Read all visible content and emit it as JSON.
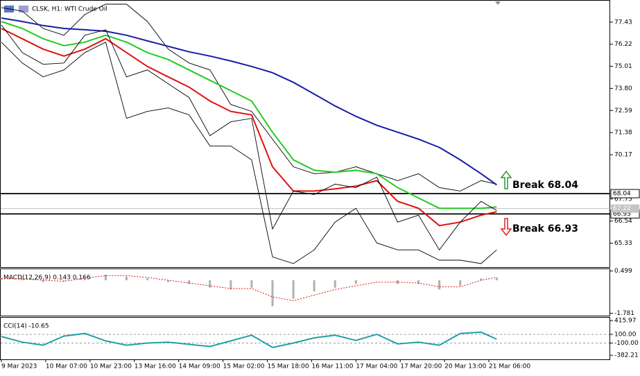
{
  "chart_data": [
    {
      "type": "line",
      "title": "CLSK, H1:  WTI Crude Oil",
      "x": [
        0,
        8,
        16,
        24,
        32,
        40,
        48,
        56,
        64,
        72,
        80,
        88,
        96,
        104,
        112,
        120,
        128,
        136,
        144,
        152,
        160,
        168,
        176,
        184,
        190
      ],
      "xlim": [
        0,
        233
      ],
      "ylim": [
        64.02,
        78.6
      ],
      "yticks": [
        77.43,
        76.22,
        75.01,
        {
          "value": 73.8,
          "label": "73.80"
        },
        72.59,
        71.38,
        70.17,
        67.75,
        66.54,
        65.33
      ],
      "levels": [
        68.04,
        66.93
      ],
      "last_price": 67.22,
      "annotations": [
        "Break 68.04",
        "Break 66.93"
      ],
      "series": [
        {
          "color": "#000000",
          "values": [
            78.22,
            78.03,
            77.08,
            76.71,
            77.84,
            78.41,
            78.41,
            77.46,
            75.95,
            75.19,
            74.81,
            72.92,
            72.54,
            71.02,
            69.51,
            69.13,
            69.21,
            69.51,
            69.13,
            68.75,
            69.13,
            68.37,
            68.18,
            68.75,
            68.56
          ]
        },
        {
          "color": "#000000",
          "values": [
            76.33,
            75.19,
            74.43,
            74.81,
            75.76,
            76.33,
            72.16,
            72.54,
            72.73,
            72.35,
            70.65,
            70.65,
            69.89,
            64.58,
            64.21,
            64.96,
            66.48,
            67.24,
            65.34,
            64.96,
            64.96,
            64.4,
            64.4,
            64.21,
            64.96
          ]
        },
        {
          "color": "#1a1aa8",
          "values": [
            77.65,
            77.46,
            77.24,
            77.08,
            77.01,
            76.93,
            76.71,
            76.4,
            76.1,
            75.8,
            75.57,
            75.3,
            75.0,
            74.66,
            74.13,
            73.49,
            72.84,
            72.27,
            71.78,
            71.4,
            71.02,
            70.57,
            69.89,
            69.13,
            68.52
          ]
        },
        {
          "color": "#22cc22",
          "values": [
            77.46,
            77.08,
            76.52,
            76.14,
            76.33,
            76.71,
            76.33,
            75.76,
            75.38,
            74.81,
            74.24,
            73.68,
            73.11,
            71.4,
            69.89,
            69.32,
            69.21,
            69.32,
            69.13,
            68.37,
            67.8,
            67.24,
            67.24,
            67.24,
            67.31
          ]
        },
        {
          "color": "#dd1111",
          "values": [
            77.08,
            76.52,
            75.95,
            75.57,
            75.95,
            76.52,
            75.76,
            75.0,
            74.43,
            73.87,
            73.11,
            72.54,
            72.35,
            69.51,
            68.18,
            68.18,
            68.3,
            68.45,
            68.75,
            67.62,
            67.24,
            66.29,
            66.48,
            66.86,
            67.05
          ]
        },
        {
          "color": "#000000",
          "values": [
            77.27,
            75.76,
            75.12,
            75.19,
            76.71,
            77.01,
            74.43,
            74.81,
            74.05,
            73.3,
            71.21,
            71.97,
            72.16,
            66.1,
            68.18,
            67.99,
            68.56,
            68.37,
            68.94,
            66.48,
            66.86,
            64.96,
            66.48,
            67.62,
            67.12
          ]
        }
      ]
    },
    {
      "type": "macd",
      "title": "MACD(12,26,9) 0.143 0.166",
      "x": [
        0,
        8,
        16,
        24,
        32,
        40,
        48,
        56,
        64,
        72,
        80,
        88,
        96,
        104,
        112,
        120,
        128,
        136,
        144,
        152,
        160,
        168,
        176,
        184,
        190
      ],
      "xlim": [
        0,
        233
      ],
      "ylim": [
        -1.91,
        0.6
      ],
      "yticks": [
        0.499,
        -1.781
      ],
      "series": [
        {
          "color": "#b0b0b0",
          "values": [
            0.1,
            0.05,
            -0.1,
            -0.05,
            0.2,
            0.3,
            0.2,
            0.1,
            -0.1,
            -0.2,
            -0.4,
            -0.5,
            -0.4,
            -1.4,
            -1.0,
            -0.6,
            -0.4,
            -0.2,
            0.0,
            -0.2,
            -0.2,
            -0.5,
            -0.3,
            0.1,
            0.143
          ]
        },
        {
          "color": "#dd1111",
          "values": [
            0.1,
            0.08,
            0.0,
            -0.05,
            0.1,
            0.25,
            0.25,
            0.15,
            0.0,
            -0.15,
            -0.3,
            -0.45,
            -0.45,
            -0.9,
            -1.1,
            -0.8,
            -0.5,
            -0.3,
            -0.1,
            -0.1,
            -0.15,
            -0.35,
            -0.35,
            0.0,
            0.166
          ]
        }
      ]
    },
    {
      "type": "line",
      "title": "CCI(14) -10.65",
      "x": [
        0,
        8,
        16,
        24,
        32,
        40,
        48,
        56,
        64,
        72,
        80,
        88,
        96,
        104,
        112,
        120,
        128,
        136,
        144,
        152,
        160,
        168,
        176,
        184,
        190
      ],
      "xlim": [
        0,
        233
      ],
      "ylim": [
        -475,
        482
      ],
      "yticks": [
        415.97,
        {
          "value": 100,
          "label": "100.00"
        },
        {
          "value": -100,
          "label": "-100.00"
        },
        -382.21
      ],
      "xticks": [
        {
          "value": 0,
          "label": "9 Mar 2023"
        },
        {
          "value": 17,
          "label": "10 Mar 07:00"
        },
        {
          "value": 34,
          "label": "10 Mar 23:00"
        },
        {
          "value": 51,
          "label": "13 Mar 16:00"
        },
        {
          "value": 68,
          "label": "14 Mar 09:00"
        },
        {
          "value": 85,
          "label": "15 Mar 02:00"
        },
        {
          "value": 102,
          "label": "15 Mar 18:00"
        },
        {
          "value": 119,
          "label": "16 Mar 11:00"
        },
        {
          "value": 136,
          "label": "17 Mar 04:00"
        },
        {
          "value": 153,
          "label": "17 Mar 20:00"
        },
        {
          "value": 170,
          "label": "20 Mar 13:00"
        },
        {
          "value": 187,
          "label": "21 Mar 06:00"
        }
      ],
      "series": [
        {
          "color": "#20a0a8",
          "values": [
            50,
            -80,
            -150,
            60,
            120,
            -50,
            -150,
            -100,
            -80,
            -130,
            -180,
            -50,
            80,
            -200,
            -100,
            20,
            80,
            -40,
            100,
            -120,
            -80,
            -150,
            120,
            150,
            -10.65
          ]
        }
      ]
    }
  ]
}
